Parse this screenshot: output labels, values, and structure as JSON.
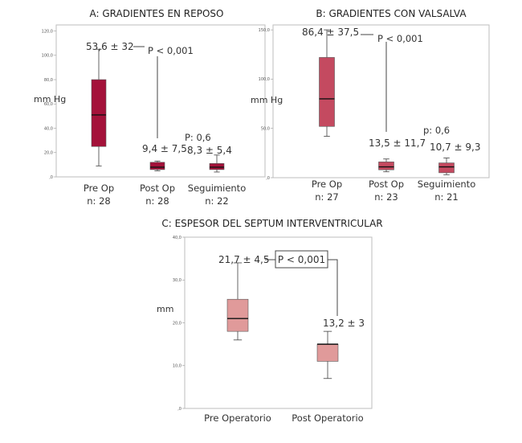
{
  "chart_data": [
    {
      "type": "box",
      "title": "A: GRADIENTES EN REPOSO",
      "ylabel": "mm Hg",
      "ylim": [
        0,
        125
      ],
      "yticks": [
        0,
        20,
        40,
        60,
        80,
        100,
        120
      ],
      "ytick_labels": [
        ",0",
        "20,0",
        "40,0",
        "60,0",
        "80,0",
        "100,0",
        "120,0"
      ],
      "box_color": "#a4123a",
      "categories": [
        {
          "label": "Pre Op",
          "n_label": "n: 28"
        },
        {
          "label": "Post Op",
          "n_label": "n: 28"
        },
        {
          "label": "Seguimiento",
          "n_label": "n: 22"
        }
      ],
      "boxes": [
        {
          "min": 9,
          "q1": 25,
          "median": 51,
          "q3": 80,
          "max": 105
        },
        {
          "min": 5,
          "q1": 6,
          "median": 8,
          "q3": 12,
          "max": 13
        },
        {
          "min": 4,
          "q1": 6,
          "median": 8,
          "q3": 11,
          "max": 18
        }
      ],
      "annotations": {
        "pre": "53,6 ± 32",
        "pvalue": "P < 0,001",
        "post": "9,4 ± 7,5",
        "p2": "P: 0,6",
        "seg": "8,3 ± 5,4"
      }
    },
    {
      "type": "box",
      "title": "B: GRADIENTES CON VALSALVA",
      "ylabel": "mm Hg",
      "ylim": [
        0,
        155
      ],
      "yticks": [
        0,
        50,
        100,
        150
      ],
      "ytick_labels": [
        ",0",
        "50,0",
        "100,0",
        "150,0"
      ],
      "box_color": "#c44a60",
      "categories": [
        {
          "label": "Pre Op",
          "n_label": "n: 27"
        },
        {
          "label": "Post Op",
          "n_label": "n: 23"
        },
        {
          "label": "Seguimiento",
          "n_label": "n: 21"
        }
      ],
      "boxes": [
        {
          "min": 42,
          "q1": 52,
          "median": 80,
          "q3": 122,
          "max": 150
        },
        {
          "min": 6,
          "q1": 8,
          "median": 11,
          "q3": 16,
          "max": 19
        },
        {
          "min": 3,
          "q1": 5,
          "median": 11,
          "q3": 15,
          "max": 20
        }
      ],
      "annotations": {
        "pre": "86,4 ± 37,5",
        "pvalue": "P < 0,001",
        "post": "13,5 ± 11,7",
        "p2": "p: 0,6",
        "seg": "10,7 ± 9,3"
      }
    },
    {
      "type": "box",
      "title": "C: ESPESOR DEL SEPTUM INTERVENTRICULAR",
      "ylabel": "mm",
      "ylim": [
        0,
        40
      ],
      "yticks": [
        0,
        10,
        20,
        30,
        40
      ],
      "ytick_labels": [
        ",0",
        "10,0",
        "20,0",
        "30,0",
        "40,0"
      ],
      "box_color": "#e09a9a",
      "categories": [
        {
          "label": "Pre Operatorio"
        },
        {
          "label": "Post Operatorio"
        }
      ],
      "boxes": [
        {
          "min": 16,
          "q1": 18,
          "median": 21,
          "q3": 25.5,
          "max": 34
        },
        {
          "min": 7,
          "q1": 11,
          "median": 15,
          "q3": 15,
          "max": 18
        }
      ],
      "annotations": {
        "pre": "21,7 ± 4,5",
        "pvalue": "P < 0,001",
        "post": "13,2 ± 3"
      }
    }
  ]
}
